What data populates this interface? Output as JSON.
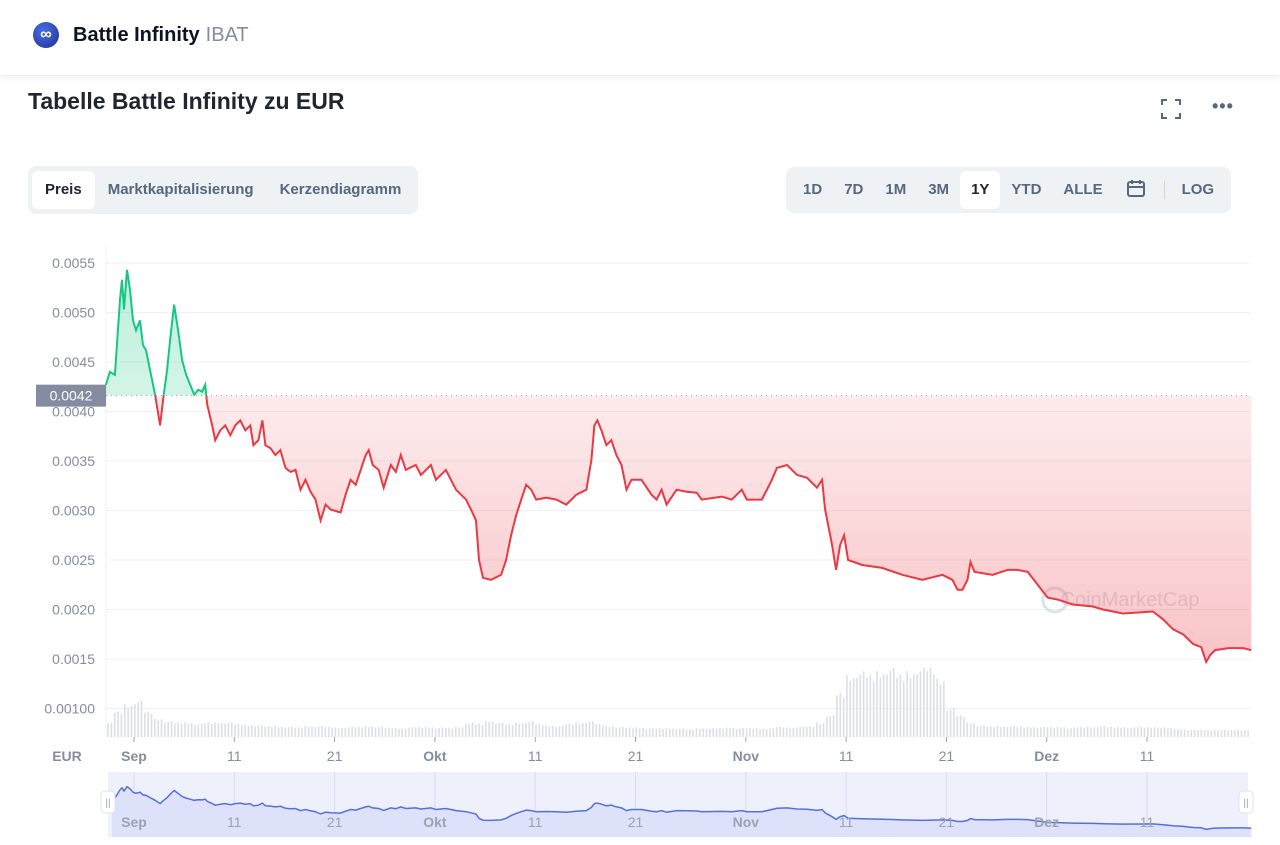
{
  "header": {
    "name": "Battle Infinity",
    "symbol": "IBAT",
    "logo_glyph": "∞"
  },
  "title": "Tabelle Battle Infinity zu EUR",
  "tabs": [
    {
      "label": "Preis",
      "active": true
    },
    {
      "label": "Marktkapitalisierung"
    },
    {
      "label": "Kerzendiagramm"
    }
  ],
  "ranges": [
    {
      "label": "1D"
    },
    {
      "label": "7D"
    },
    {
      "label": "1M"
    },
    {
      "label": "3M"
    },
    {
      "label": "1Y",
      "active": true
    },
    {
      "label": "YTD"
    },
    {
      "label": "ALLE"
    }
  ],
  "log_label": "LOG",
  "watermark": "CoinMarketCap",
  "colors": {
    "up": "#16c784",
    "down": "#ea3943",
    "nav": "#5470de"
  },
  "chart_data": {
    "type": "line",
    "currency_label": "EUR",
    "ylim": [
      0.00075,
      0.0057
    ],
    "yticks": [
      "0.0055",
      "0.0050",
      "0.0045",
      "0.0040",
      "0.0035",
      "0.0030",
      "0.0025",
      "0.0020",
      "0.0015",
      "0.00100"
    ],
    "ytick_values": [
      0.0055,
      0.005,
      0.0045,
      0.004,
      0.0035,
      0.003,
      0.0025,
      0.002,
      0.0015,
      0.001
    ],
    "baseline": 0.00416,
    "baseline_label": "0.0042",
    "xlim_days": [
      -2.8,
      111.4
    ],
    "xticks": [
      {
        "label": "Sep",
        "day": 0,
        "bold": true
      },
      {
        "label": "11",
        "day": 10
      },
      {
        "label": "21",
        "day": 20
      },
      {
        "label": "Okt",
        "day": 30,
        "bold": true
      },
      {
        "label": "11",
        "day": 40
      },
      {
        "label": "21",
        "day": 50
      },
      {
        "label": "Nov",
        "day": 61,
        "bold": true
      },
      {
        "label": "11",
        "day": 71
      },
      {
        "label": "21",
        "day": 81
      },
      {
        "label": "Dez",
        "day": 91,
        "bold": true
      },
      {
        "label": "11",
        "day": 101
      }
    ],
    "series": [
      [
        -2.8,
        0.00427
      ],
      [
        -2.4,
        0.0044
      ],
      [
        -1.9,
        0.00437
      ],
      [
        -1.4,
        0.00513
      ],
      [
        -1.2,
        0.00533
      ],
      [
        -1.0,
        0.00503
      ],
      [
        -0.7,
        0.00543
      ],
      [
        -0.4,
        0.00523
      ],
      [
        -0.1,
        0.00492
      ],
      [
        0.2,
        0.00482
      ],
      [
        0.6,
        0.00492
      ],
      [
        0.9,
        0.00467
      ],
      [
        1.2,
        0.00462
      ],
      [
        1.6,
        0.00442
      ],
      [
        2.1,
        0.00417
      ],
      [
        2.6,
        0.00386
      ],
      [
        2.9,
        0.00412
      ],
      [
        3.3,
        0.00442
      ],
      [
        3.6,
        0.00472
      ],
      [
        4.0,
        0.00508
      ],
      [
        4.4,
        0.00482
      ],
      [
        4.8,
        0.00452
      ],
      [
        5.2,
        0.00437
      ],
      [
        5.6,
        0.00427
      ],
      [
        6.0,
        0.00417
      ],
      [
        6.4,
        0.00422
      ],
      [
        6.8,
        0.0042
      ],
      [
        7.1,
        0.00427
      ],
      [
        7.3,
        0.00407
      ],
      [
        7.8,
        0.00386
      ],
      [
        8.1,
        0.00371
      ],
      [
        8.6,
        0.00381
      ],
      [
        9.1,
        0.00386
      ],
      [
        9.6,
        0.00376
      ],
      [
        10.1,
        0.00386
      ],
      [
        10.6,
        0.00391
      ],
      [
        11.1,
        0.00381
      ],
      [
        11.6,
        0.00386
      ],
      [
        11.9,
        0.00366
      ],
      [
        12.4,
        0.00371
      ],
      [
        12.8,
        0.00391
      ],
      [
        13.1,
        0.00366
      ],
      [
        13.6,
        0.00363
      ],
      [
        14.1,
        0.00356
      ],
      [
        14.6,
        0.00361
      ],
      [
        15.1,
        0.00343
      ],
      [
        15.6,
        0.00339
      ],
      [
        16.1,
        0.00341
      ],
      [
        16.6,
        0.00321
      ],
      [
        17.1,
        0.00331
      ],
      [
        17.6,
        0.00319
      ],
      [
        18.1,
        0.00311
      ],
      [
        18.6,
        0.0029
      ],
      [
        19.1,
        0.00306
      ],
      [
        19.6,
        0.00301
      ],
      [
        20.6,
        0.00298
      ],
      [
        21.1,
        0.00316
      ],
      [
        21.6,
        0.00331
      ],
      [
        22.1,
        0.00326
      ],
      [
        22.6,
        0.00341
      ],
      [
        23.1,
        0.00356
      ],
      [
        23.4,
        0.00361
      ],
      [
        23.8,
        0.00346
      ],
      [
        24.4,
        0.00341
      ],
      [
        24.9,
        0.00323
      ],
      [
        25.6,
        0.00346
      ],
      [
        26.1,
        0.00339
      ],
      [
        26.6,
        0.00356
      ],
      [
        27.1,
        0.00341
      ],
      [
        28.1,
        0.00346
      ],
      [
        28.6,
        0.00336
      ],
      [
        29.6,
        0.00346
      ],
      [
        30.1,
        0.00331
      ],
      [
        31.1,
        0.00341
      ],
      [
        31.6,
        0.00331
      ],
      [
        32.1,
        0.00321
      ],
      [
        33.1,
        0.00311
      ],
      [
        33.6,
        0.00301
      ],
      [
        34.1,
        0.0029
      ],
      [
        34.4,
        0.0025
      ],
      [
        34.8,
        0.00232
      ],
      [
        35.6,
        0.0023
      ],
      [
        36.6,
        0.00235
      ],
      [
        37.1,
        0.0025
      ],
      [
        37.6,
        0.00275
      ],
      [
        38.1,
        0.00295
      ],
      [
        38.6,
        0.00311
      ],
      [
        39.1,
        0.00326
      ],
      [
        39.6,
        0.00321
      ],
      [
        40.1,
        0.00311
      ],
      [
        41.1,
        0.00313
      ],
      [
        42.1,
        0.00311
      ],
      [
        43.1,
        0.00306
      ],
      [
        44.1,
        0.00316
      ],
      [
        45.1,
        0.00321
      ],
      [
        45.6,
        0.00351
      ],
      [
        45.9,
        0.00386
      ],
      [
        46.2,
        0.00391
      ],
      [
        46.6,
        0.00381
      ],
      [
        47.1,
        0.00366
      ],
      [
        47.6,
        0.00371
      ],
      [
        48.1,
        0.00356
      ],
      [
        48.6,
        0.00346
      ],
      [
        49.1,
        0.00321
      ],
      [
        49.6,
        0.00331
      ],
      [
        50.6,
        0.00331
      ],
      [
        51.6,
        0.00316
      ],
      [
        52.1,
        0.00311
      ],
      [
        52.6,
        0.00321
      ],
      [
        53.1,
        0.00306
      ],
      [
        54.1,
        0.00321
      ],
      [
        55.1,
        0.00319
      ],
      [
        56.1,
        0.00318
      ],
      [
        56.6,
        0.00311
      ],
      [
        58.6,
        0.00314
      ],
      [
        59.6,
        0.00311
      ],
      [
        60.6,
        0.00321
      ],
      [
        61.1,
        0.00311
      ],
      [
        62.6,
        0.00311
      ],
      [
        63.6,
        0.00331
      ],
      [
        64.1,
        0.00343
      ],
      [
        65.1,
        0.00346
      ],
      [
        66.1,
        0.00336
      ],
      [
        67.1,
        0.00333
      ],
      [
        68.1,
        0.00323
      ],
      [
        68.6,
        0.00331
      ],
      [
        68.9,
        0.00301
      ],
      [
        69.6,
        0.00265
      ],
      [
        70.0,
        0.0024
      ],
      [
        70.4,
        0.00265
      ],
      [
        70.8,
        0.00275
      ],
      [
        71.2,
        0.0025
      ],
      [
        72.6,
        0.00245
      ],
      [
        74.6,
        0.00242
      ],
      [
        76.6,
        0.00235
      ],
      [
        78.6,
        0.0023
      ],
      [
        80.6,
        0.00235
      ],
      [
        81.6,
        0.0023
      ],
      [
        82.1,
        0.0022
      ],
      [
        82.6,
        0.0022
      ],
      [
        83.1,
        0.0023
      ],
      [
        83.4,
        0.00248
      ],
      [
        83.8,
        0.00238
      ],
      [
        85.6,
        0.00235
      ],
      [
        87.1,
        0.0024
      ],
      [
        88.1,
        0.0024
      ],
      [
        89.1,
        0.00238
      ],
      [
        90.1,
        0.00225
      ],
      [
        91.1,
        0.00212
      ],
      [
        92.1,
        0.0021
      ],
      [
        93.6,
        0.00205
      ],
      [
        95.6,
        0.00203
      ],
      [
        96.6,
        0.002
      ],
      [
        98.6,
        0.00196
      ],
      [
        101.6,
        0.00198
      ],
      [
        102.6,
        0.0019
      ],
      [
        103.6,
        0.0018
      ],
      [
        104.6,
        0.00175
      ],
      [
        105.6,
        0.00165
      ],
      [
        106.4,
        0.00162
      ],
      [
        106.9,
        0.00147
      ],
      [
        107.3,
        0.00154
      ],
      [
        107.8,
        0.00159
      ],
      [
        109.1,
        0.00161
      ],
      [
        110.6,
        0.00161
      ],
      [
        111.4,
        0.00159
      ]
    ],
    "volume_start_day": -3,
    "volume_relative": [
      0.2,
      0.35,
      0.45,
      0.5,
      0.35,
      0.25,
      0.22,
      0.2,
      0.2,
      0.18,
      0.2,
      0.2,
      0.2,
      0.18,
      0.17,
      0.16,
      0.15,
      0.15,
      0.14,
      0.13,
      0.15,
      0.15,
      0.14,
      0.13,
      0.14,
      0.14,
      0.15,
      0.14,
      0.13,
      0.12,
      0.13,
      0.14,
      0.14,
      0.13,
      0.13,
      0.14,
      0.2,
      0.18,
      0.22,
      0.2,
      0.18,
      0.2,
      0.22,
      0.18,
      0.16,
      0.15,
      0.18,
      0.2,
      0.22,
      0.18,
      0.15,
      0.14,
      0.13,
      0.13,
      0.12,
      0.12,
      0.12,
      0.12,
      0.11,
      0.12,
      0.12,
      0.12,
      0.13,
      0.12,
      0.12,
      0.12,
      0.12,
      0.14,
      0.13,
      0.14,
      0.15,
      0.2,
      0.3,
      0.6,
      0.85,
      0.9,
      0.85,
      0.9,
      0.95,
      0.85,
      0.9,
      0.95,
      0.95,
      0.8,
      0.4,
      0.3,
      0.2,
      0.16,
      0.15,
      0.15,
      0.15,
      0.14,
      0.14,
      0.14,
      0.14,
      0.14,
      0.13,
      0.14,
      0.14,
      0.15,
      0.14,
      0.14,
      0.13,
      0.14,
      0.14,
      0.13,
      0.12,
      0.11,
      0.1,
      0.1,
      0.1,
      0.1,
      0.1,
      0.1,
      0.1
    ]
  }
}
